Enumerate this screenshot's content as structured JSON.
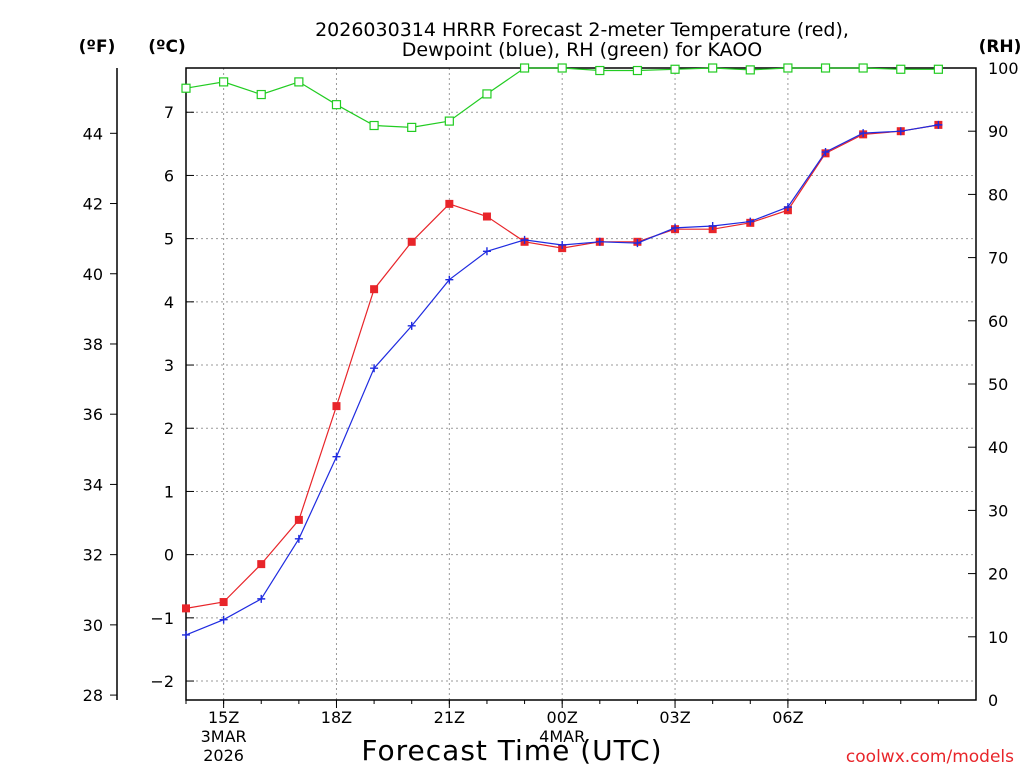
{
  "chart_data": {
    "type": "line",
    "title_line1": "2026030314 HRRR Forecast 2-meter Temperature (red),",
    "title_line2": "Dewpoint (blue), RH (green) for KAOO",
    "xlabel": "Forecast Time (UTC)",
    "unit_left_f": "(ºF)",
    "unit_left_c": "(ºC)",
    "unit_right": "(RH)",
    "watermark": "coolwx.com/models",
    "x_hours": [
      0,
      1,
      2,
      3,
      4,
      5,
      6,
      7,
      8,
      9,
      10,
      11,
      12,
      13,
      14,
      15,
      16,
      17,
      18,
      19,
      20
    ],
    "xlim": [
      0,
      21
    ],
    "x_ticks": [
      {
        "x": 1,
        "label": "15Z",
        "sub1": "3MAR",
        "sub2": "2026"
      },
      {
        "x": 4,
        "label": "18Z",
        "sub1": "",
        "sub2": ""
      },
      {
        "x": 7,
        "label": "21Z",
        "sub1": "",
        "sub2": ""
      },
      {
        "x": 10,
        "label": "00Z",
        "sub1": "4MAR",
        "sub2": ""
      },
      {
        "x": 13,
        "label": "03Z",
        "sub1": "",
        "sub2": ""
      },
      {
        "x": 16,
        "label": "06Z",
        "sub1": "",
        "sub2": ""
      }
    ],
    "celsius_axis": {
      "ylim": [
        -2.3,
        7.7
      ],
      "ticks": [
        -2,
        -1,
        0,
        1,
        2,
        3,
        4,
        5,
        6,
        7
      ]
    },
    "fahrenheit_axis": {
      "ylim": [
        27.86,
        45.86
      ],
      "ticks": [
        28,
        30,
        32,
        34,
        36,
        38,
        40,
        42,
        44
      ]
    },
    "rh_axis": {
      "ylim": [
        0,
        100
      ],
      "ticks": [
        0,
        10,
        20,
        30,
        40,
        50,
        60,
        70,
        80,
        90,
        100
      ]
    },
    "series": [
      {
        "name": "Temperature",
        "color": "#e8252a",
        "marker": "square-filled",
        "values": [
          -0.85,
          -0.75,
          -0.15,
          0.55,
          2.35,
          4.2,
          4.95,
          5.55,
          5.35,
          4.95,
          4.85,
          4.95,
          4.95,
          5.15,
          5.15,
          5.25,
          5.45,
          6.35,
          6.65,
          6.7,
          6.8
        ]
      },
      {
        "name": "Dewpoint",
        "color": "#1f2be0",
        "marker": "plus",
        "values": [
          -1.27,
          -1.03,
          -0.7,
          0.25,
          1.55,
          2.95,
          3.62,
          4.35,
          4.8,
          4.98,
          4.9,
          4.95,
          4.93,
          5.17,
          5.2,
          5.27,
          5.5,
          6.37,
          6.67,
          6.7,
          6.8
        ]
      },
      {
        "name": "RH",
        "color": "#22cc22",
        "marker": "square-open",
        "axis": "rh",
        "values": [
          96.8,
          97.8,
          95.8,
          97.8,
          94.2,
          90.9,
          90.6,
          91.6,
          95.9,
          100,
          100,
          99.6,
          99.6,
          99.8,
          100,
          99.7,
          100,
          100,
          100,
          99.8,
          99.8
        ]
      }
    ]
  }
}
